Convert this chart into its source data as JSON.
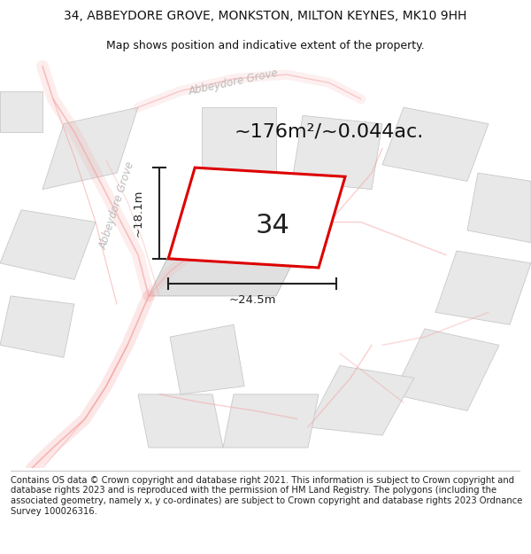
{
  "title_line1": "34, ABBEYDORE GROVE, MONKSTON, MILTON KEYNES, MK10 9HH",
  "title_line2": "Map shows position and indicative extent of the property.",
  "area_text": "~176m²/~0.044ac.",
  "label_34": "34",
  "dim_height": "~18.1m",
  "dim_width": "~24.5m",
  "footer_text": "Contains OS data © Crown copyright and database right 2021. This information is subject to Crown copyright and database rights 2023 and is reproduced with the permission of HM Land Registry. The polygons (including the associated geometry, namely x, y co-ordinates) are subject to Crown copyright and database rights 2023 Ordnance Survey 100026316.",
  "bg_color": "#ffffff",
  "block_fill": "#e8e8e8",
  "block_edge": "#c8c8c8",
  "road_color": "#f5a0a0",
  "highlight_edge": "#dd0000",
  "highlight_fill": "#ffffff",
  "dim_color": "#222222",
  "street_color": "#bbbbbb",
  "title_fontsize": 10,
  "subtitle_fontsize": 9,
  "area_fontsize": 16,
  "label_fontsize": 22,
  "dim_fontsize": 9.5,
  "footer_fontsize": 7.2
}
